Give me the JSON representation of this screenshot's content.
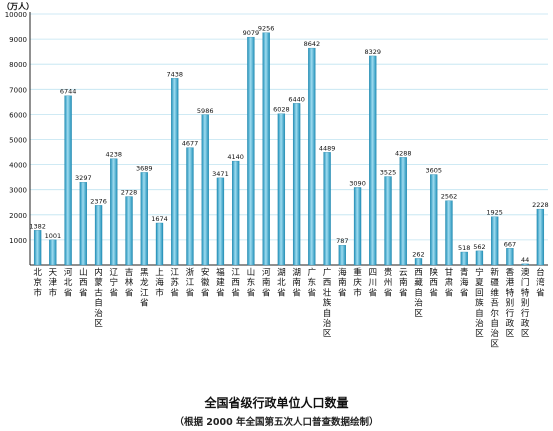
{
  "chart_data": {
    "type": "bar",
    "title": "全国省级行政单位人口数量",
    "subtitle": "（根据 2000 年全国第五次人口普查数据绘制）",
    "ylabel": "（万人）",
    "ylim": [
      0,
      10000
    ],
    "yticks": [
      1000,
      2000,
      3000,
      4000,
      5000,
      6000,
      7000,
      8000,
      9000,
      10000
    ],
    "grid": true,
    "categories": [
      "北京市",
      "天津市",
      "河北省",
      "山西省",
      "内蒙古自治区",
      "辽宁省",
      "吉林省",
      "黑龙江省",
      "上海市",
      "江苏省",
      "浙江省",
      "安徽省",
      "福建省",
      "江西省",
      "山东省",
      "河南省",
      "湖北省",
      "湖南省",
      "广东省",
      "广西壮族自治区",
      "海南省",
      "重庆市",
      "四川省",
      "贵州省",
      "云南省",
      "西藏自治区",
      "陕西省",
      "甘肃省",
      "青海省",
      "宁夏回族自治区",
      "新疆维吾尔自治区",
      "香港特别行政区",
      "澳门特别行政区",
      "台湾省"
    ],
    "values": [
      1382,
      1001,
      6744,
      3297,
      2376,
      4238,
      2728,
      3689,
      1674,
      7438,
      4677,
      5986,
      3471,
      4140,
      9079,
      9256,
      6028,
      6440,
      8642,
      4489,
      787,
      3090,
      8329,
      3525,
      4288,
      262,
      3605,
      2562,
      518,
      562,
      1925,
      667,
      44,
      2228
    ],
    "value_labels": [
      "1382",
      "1001",
      "6744",
      "3297",
      "2376",
      "4238",
      "2728",
      "3689",
      "1674",
      "7438",
      "4677",
      "5986",
      "3471",
      "4140",
      "9079",
      "9256",
      "6028",
      "6440",
      "8642",
      "4489",
      "787",
      "3090",
      "8329",
      "3525",
      "4288",
      "262",
      "3605",
      "2562",
      "518",
      "562",
      "1925",
      "667",
      "44",
      "2228"
    ],
    "colors": {
      "bar_dark": "#1f8fb8",
      "bar_light": "#9fdcf0",
      "grid": "#bfe3f0",
      "axis": "#222222"
    }
  }
}
